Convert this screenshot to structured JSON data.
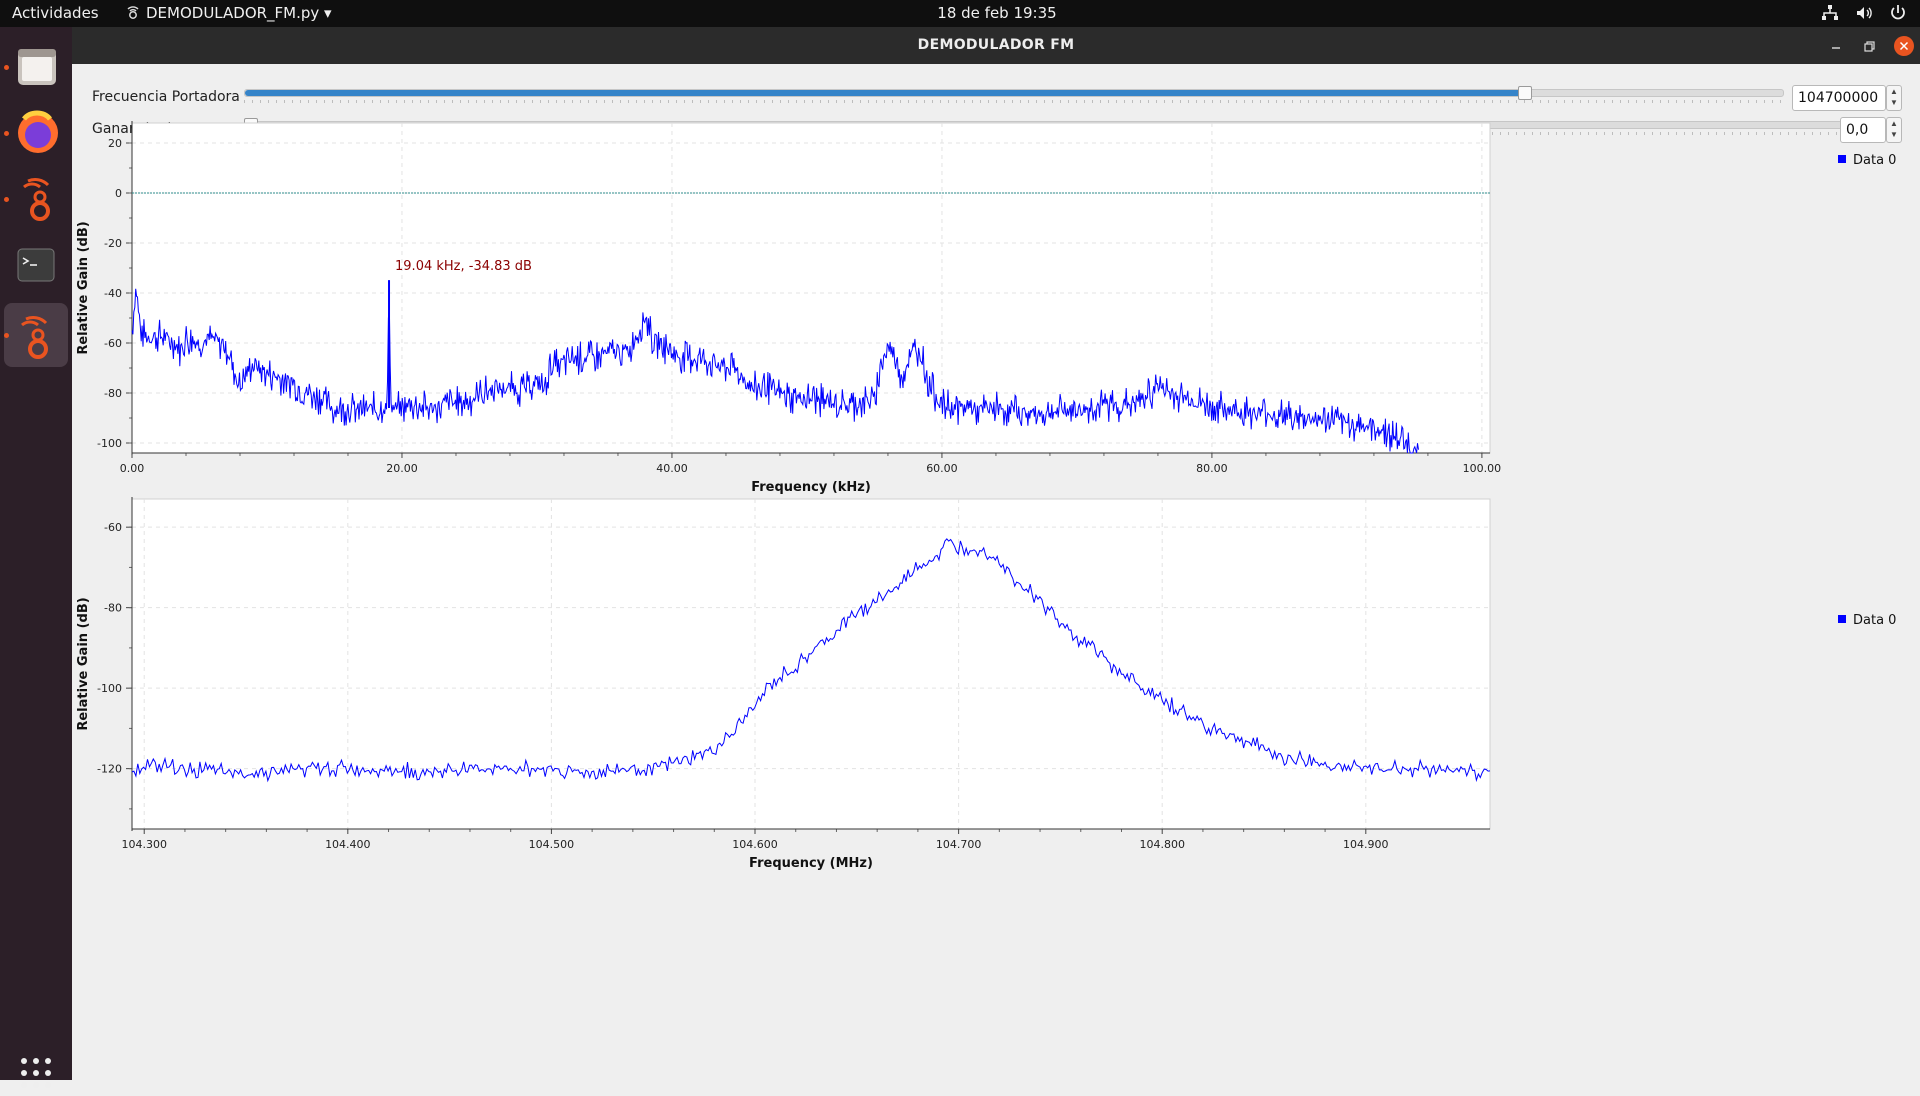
{
  "topbar": {
    "activities": "Actividades",
    "app_name": "DEMODULADOR_FM.py ▾",
    "clock": "18 de feb  19:35",
    "sys_icons": [
      "network-icon",
      "volume-icon",
      "power-icon"
    ]
  },
  "dock": {
    "items": [
      "files-icon",
      "firefox-icon",
      "gnuradio-icon",
      "terminal-icon",
      "gnuradio-active-icon"
    ],
    "grid": "show-apps-icon"
  },
  "window": {
    "title": "DEMODULADOR FM",
    "controls": [
      "minimize-icon",
      "maximize-icon",
      "close-icon"
    ]
  },
  "controls": {
    "carrier": {
      "label": "Frecuencia Portadora",
      "value": "104700000",
      "fraction": 0.832
    },
    "gain": {
      "label": "Ganancia de receptor",
      "value": "0,0",
      "fraction": 0.0
    }
  },
  "colors": {
    "trace": "#0000ff",
    "marker": "#8b0000",
    "refline": "#2e8b8b",
    "accent": "#3584c9",
    "close": "#e95420"
  },
  "chart_data": [
    {
      "type": "line",
      "title": "",
      "xlabel": "Frequency (kHz)",
      "ylabel": "Relative Gain (dB)",
      "xlim": [
        0,
        100.6
      ],
      "ylim": [
        -104,
        28
      ],
      "xticks": [
        "0.00",
        "20.00",
        "40.00",
        "60.00",
        "80.00",
        "100.00"
      ],
      "yticks": [
        "20",
        "0",
        "-20",
        "-40",
        "-60",
        "-80",
        "-100"
      ],
      "grid": true,
      "legend": "top-right",
      "reference_line_db": 0,
      "annotation": {
        "text": "19.04 kHz, -34.83 dB",
        "x": 19.04,
        "y": -34.83
      },
      "series": [
        {
          "name": "Data 0",
          "x": [
            0,
            0.3,
            0.6,
            1,
            2,
            3,
            3.5,
            4,
            5,
            6,
            7,
            7.5,
            8,
            8.5,
            9,
            10,
            11,
            12,
            13,
            14,
            14.5,
            15,
            16,
            17,
            18,
            18.9,
            19.04,
            19.2,
            20,
            21,
            22,
            23,
            24,
            25,
            26,
            27,
            28,
            29,
            30,
            30.5,
            31,
            32,
            33,
            34,
            35,
            36,
            37,
            37.5,
            38,
            38.5,
            39,
            40,
            41,
            42,
            43,
            44,
            45,
            45.5,
            46,
            47,
            48,
            49,
            50,
            51,
            52,
            53,
            54,
            55,
            55.5,
            56,
            56.5,
            57,
            57.5,
            58,
            58.5,
            59,
            60,
            61,
            62,
            63,
            64,
            65,
            66,
            67,
            68,
            69,
            70,
            71,
            72,
            73,
            74,
            75,
            75.5,
            76,
            76.5,
            77,
            78,
            79,
            80,
            81,
            82,
            83,
            84,
            85,
            86,
            87,
            88,
            89,
            90,
            91,
            92,
            93,
            94,
            94.5,
            95,
            95.3
          ],
          "y": [
            -55,
            -38,
            -54,
            -58,
            -57,
            -59,
            -63,
            -58,
            -60,
            -58,
            -62,
            -70,
            -78,
            -72,
            -68,
            -72,
            -74,
            -76,
            -80,
            -82,
            -84,
            -87,
            -86,
            -87,
            -86,
            -86,
            -34.83,
            -86,
            -86,
            -85,
            -86,
            -85,
            -84,
            -83,
            -80,
            -78,
            -78,
            -79,
            -76,
            -78,
            -70,
            -68,
            -66,
            -66,
            -64,
            -64,
            -62,
            -56,
            -48,
            -58,
            -60,
            -64,
            -66,
            -66,
            -68,
            -70,
            -72,
            -76,
            -78,
            -78,
            -80,
            -82,
            -82,
            -83,
            -84,
            -85,
            -84,
            -82,
            -68,
            -62,
            -64,
            -73,
            -68,
            -62,
            -65,
            -76,
            -85,
            -86,
            -86,
            -87,
            -86,
            -87,
            -88,
            -88,
            -88,
            -87,
            -87,
            -86,
            -85,
            -85,
            -84,
            -82,
            -80,
            -77,
            -79,
            -80,
            -82,
            -84,
            -85,
            -86,
            -87,
            -88,
            -88,
            -89,
            -90,
            -90,
            -91,
            -91,
            -92,
            -93,
            -94,
            -96,
            -99,
            -100,
            -104,
            -104
          ]
        }
      ]
    },
    {
      "type": "line",
      "title": "",
      "xlabel": "Frequency (MHz)",
      "ylabel": "Relative Gain (dB)",
      "xlim": [
        104.294,
        104.961
      ],
      "ylim": [
        -135,
        -53
      ],
      "xticks": [
        "104.300",
        "104.400",
        "104.500",
        "104.600",
        "104.700",
        "104.800",
        "104.900"
      ],
      "yticks": [
        "-60",
        "-80",
        "-100",
        "-120"
      ],
      "grid": true,
      "legend": "top-right",
      "series": [
        {
          "name": "Data 0",
          "x": [
            104.294,
            104.3,
            104.32,
            104.34,
            104.36,
            104.38,
            104.4,
            104.42,
            104.44,
            104.46,
            104.48,
            104.5,
            104.52,
            104.54,
            104.56,
            104.57,
            104.58,
            104.59,
            104.6,
            104.61,
            104.62,
            104.63,
            104.64,
            104.65,
            104.66,
            104.67,
            104.68,
            104.69,
            104.695,
            104.7,
            104.71,
            104.72,
            104.73,
            104.74,
            104.75,
            104.76,
            104.77,
            104.78,
            104.79,
            104.8,
            104.82,
            104.84,
            104.86,
            104.88,
            104.9,
            104.92,
            104.94,
            104.961
          ],
          "y": [
            -120,
            -119,
            -120,
            -121,
            -121,
            -120,
            -120,
            -120,
            -121,
            -120,
            -120,
            -120,
            -121,
            -120,
            -119,
            -117,
            -115,
            -111,
            -104,
            -98,
            -95,
            -90,
            -86,
            -81,
            -78,
            -75,
            -70,
            -67,
            -64,
            -65,
            -65,
            -68,
            -74,
            -78,
            -84,
            -88,
            -92,
            -96,
            -100,
            -103,
            -109,
            -113,
            -117,
            -119,
            -120,
            -120,
            -120,
            -121
          ]
        }
      ]
    }
  ]
}
